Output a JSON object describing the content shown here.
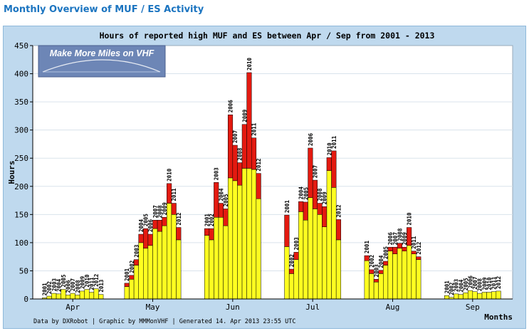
{
  "page_title": "Monthly Overview of MUF / ES Activity",
  "logo_text": "Make More Miles on VHF",
  "footer_text": "Data by DXRobot  |  Graphic by MMMonVHF  |  Generated 14. Apr 2013 23:55 UTC",
  "colors": {
    "high_muf": "#ffff20",
    "es": "#e41a10",
    "plot_bg": "#ffffff",
    "frame_bg": "#bfd9ee"
  },
  "chart_data": {
    "type": "bar",
    "stacked": true,
    "title": "Hours of reported high MUF and ES between Apr / Sep from 2001 - 2013",
    "xlabel": "Months",
    "ylabel": "Hours",
    "ylim": [
      0,
      450
    ],
    "yticks": [
      0,
      50,
      100,
      150,
      200,
      250,
      300,
      350,
      400,
      450
    ],
    "grid": true,
    "months": [
      {
        "name": "Apr",
        "years": [
          "2001",
          "2002",
          "2003",
          "2004",
          "2005",
          "2006",
          "2007",
          "2008",
          "2009",
          "2010",
          "2011",
          "2012",
          "2013"
        ],
        "high_muf": [
          2,
          5,
          10,
          9,
          17,
          7,
          10,
          7,
          14,
          17,
          12,
          18,
          8
        ],
        "es": [
          0,
          0,
          0,
          0,
          0,
          0,
          0,
          0,
          0,
          0,
          0,
          0,
          0
        ]
      },
      {
        "name": "May",
        "years": [
          "2001",
          "2002",
          "2003",
          "2004",
          "2005",
          "2006",
          "2007",
          "2008",
          "2009",
          "2010",
          "2011",
          "2012"
        ],
        "high_muf": [
          22,
          35,
          60,
          100,
          90,
          95,
          125,
          120,
          130,
          170,
          150,
          105
        ],
        "es": [
          6,
          7,
          10,
          15,
          35,
          20,
          15,
          20,
          15,
          35,
          20,
          22
        ]
      },
      {
        "name": "Jun",
        "years": [
          "2001",
          "2002",
          "2003",
          "2004",
          "2005",
          "2006",
          "2007",
          "2008",
          "2009",
          "2010",
          "2011",
          "2012"
        ],
        "high_muf": [
          113,
          105,
          145,
          145,
          130,
          215,
          210,
          202,
          232,
          232,
          230,
          178
        ],
        "es": [
          12,
          20,
          62,
          25,
          30,
          112,
          63,
          40,
          78,
          170,
          56,
          45
        ]
      },
      {
        "name": "Jul",
        "years": [
          "2001",
          "2002",
          "2003",
          "2004",
          "2005",
          "2006",
          "2007",
          "2008",
          "2009",
          "2010",
          "2011",
          "2012"
        ],
        "high_muf": [
          93,
          45,
          70,
          155,
          140,
          180,
          160,
          150,
          128,
          228,
          198,
          105
        ],
        "es": [
          56,
          8,
          13,
          18,
          32,
          88,
          51,
          20,
          36,
          23,
          65,
          36
        ]
      },
      {
        "name": "Aug",
        "years": [
          "2001",
          "2002",
          "2003",
          "2004",
          "2005",
          "2006",
          "2007",
          "2008",
          "2009",
          "2010",
          "2011",
          "2012"
        ],
        "high_muf": [
          68,
          45,
          30,
          45,
          60,
          85,
          80,
          90,
          85,
          95,
          80,
          70
        ],
        "es": [
          9,
          7,
          5,
          6,
          7,
          7,
          12,
          9,
          7,
          32,
          5,
          5
        ]
      },
      {
        "name": "Sep",
        "years": [
          "2001",
          "2002",
          "2003",
          "2004",
          "2005",
          "2006",
          "2007",
          "2008",
          "2009",
          "2010",
          "2011",
          "2012"
        ],
        "high_muf": [
          6,
          3,
          9,
          8,
          11,
          15,
          13,
          10,
          12,
          12,
          13,
          14
        ],
        "es": [
          0,
          0,
          0,
          0,
          0,
          0,
          0,
          0,
          0,
          0,
          0,
          0
        ]
      }
    ]
  }
}
